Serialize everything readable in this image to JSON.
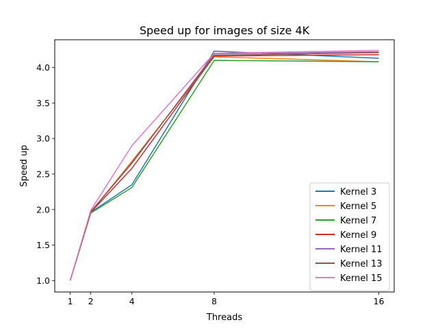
{
  "chart_data": {
    "type": "line",
    "title": "Speed up for images of size 4K",
    "xlabel": "Threads",
    "ylabel": "Speed up",
    "x": [
      1,
      2,
      4,
      8,
      16
    ],
    "xticks": [
      1,
      2,
      4,
      8,
      16
    ],
    "yticks": [
      1.0,
      1.5,
      2.0,
      2.5,
      3.0,
      3.5,
      4.0
    ],
    "xlim": [
      0.25,
      16.75
    ],
    "ylim": [
      0.84,
      4.39
    ],
    "grid": false,
    "legend_position": "lower-right",
    "series": [
      {
        "name": "Kernel 3",
        "color": "#1f77b4",
        "values": [
          1.0,
          1.96,
          2.35,
          4.23,
          4.13
        ]
      },
      {
        "name": "Kernel 5",
        "color": "#ff7f0e",
        "values": [
          1.0,
          1.96,
          2.68,
          4.15,
          4.08
        ]
      },
      {
        "name": "Kernel 7",
        "color": "#2ca02c",
        "values": [
          1.0,
          1.95,
          2.31,
          4.1,
          4.08
        ]
      },
      {
        "name": "Kernel 9",
        "color": "#d62728",
        "values": [
          1.0,
          1.96,
          2.58,
          4.16,
          4.18
        ]
      },
      {
        "name": "Kernel 11",
        "color": "#9467bd",
        "values": [
          1.0,
          1.97,
          2.65,
          4.19,
          4.22
        ]
      },
      {
        "name": "Kernel 13",
        "color": "#8c564b",
        "values": [
          1.0,
          1.97,
          2.66,
          4.17,
          4.21
        ]
      },
      {
        "name": "Kernel 15",
        "color": "#e377c2",
        "values": [
          1.0,
          1.99,
          2.9,
          4.2,
          4.24
        ]
      }
    ]
  }
}
